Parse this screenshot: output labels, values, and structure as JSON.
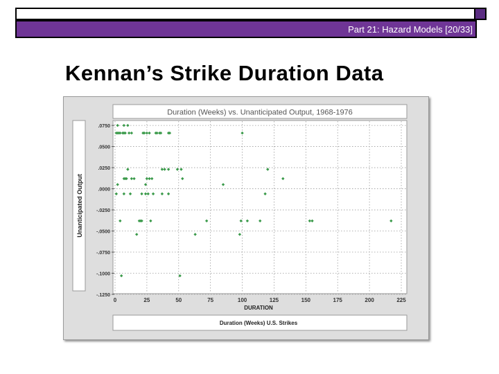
{
  "header": {
    "slide_number_label": "Part 21: Hazard Models [20/33]"
  },
  "slide": {
    "title": "Kennan’s Strike Duration Data"
  },
  "chart_data": {
    "type": "scatter",
    "title": "Duration (Weeks) vs. Unanticipated Output, 1968-1976",
    "xlabel": "DURATION",
    "ylabel": "Unanticipated Output",
    "legend_label": "Duration (Weeks) U.S. Strikes",
    "xlim": [
      0,
      225
    ],
    "ylim": [
      -0.125,
      0.08
    ],
    "x_ticks": [
      0,
      25,
      50,
      75,
      100,
      125,
      150,
      175,
      200,
      225
    ],
    "x_tick_labels": [
      "0",
      "25",
      "50",
      "75",
      "100",
      "125",
      "150",
      "175",
      "200",
      "225"
    ],
    "y_ticks": [
      0.075,
      0.05,
      0.025,
      0,
      -0.025,
      -0.05,
      -0.075,
      -0.1,
      -0.125
    ],
    "y_tick_labels": [
      ".0750",
      ".0500",
      ".0250",
      ".0000",
      "-.0250",
      "-.0500",
      "-.0750",
      "-.1000",
      "-.1250"
    ],
    "grid": true,
    "marker_color": "#3a9a4a",
    "points": [
      [
        2,
        0.075
      ],
      [
        7,
        0.075
      ],
      [
        10,
        0.075
      ],
      [
        1,
        0.066
      ],
      [
        2,
        0.066
      ],
      [
        3,
        0.066
      ],
      [
        4,
        0.066
      ],
      [
        6,
        0.066
      ],
      [
        7,
        0.066
      ],
      [
        8,
        0.066
      ],
      [
        11,
        0.066
      ],
      [
        13,
        0.066
      ],
      [
        22,
        0.066
      ],
      [
        23,
        0.066
      ],
      [
        25,
        0.066
      ],
      [
        27,
        0.066
      ],
      [
        32,
        0.066
      ],
      [
        33,
        0.066
      ],
      [
        35,
        0.066
      ],
      [
        36,
        0.066
      ],
      [
        42,
        0.066
      ],
      [
        43,
        0.066
      ],
      [
        100,
        0.066
      ],
      [
        10,
        0.023
      ],
      [
        37,
        0.023
      ],
      [
        39,
        0.023
      ],
      [
        42,
        0.023
      ],
      [
        49,
        0.023
      ],
      [
        52,
        0.023
      ],
      [
        120,
        0.023
      ],
      [
        7,
        0.012
      ],
      [
        8,
        0.012
      ],
      [
        9,
        0.012
      ],
      [
        13,
        0.012
      ],
      [
        15,
        0.012
      ],
      [
        25,
        0.012
      ],
      [
        27,
        0.012
      ],
      [
        29,
        0.012
      ],
      [
        53,
        0.012
      ],
      [
        132,
        0.012
      ],
      [
        2,
        0.005
      ],
      [
        24,
        0.005
      ],
      [
        85,
        0.005
      ],
      [
        1,
        -0.006
      ],
      [
        7,
        -0.006
      ],
      [
        12,
        -0.006
      ],
      [
        21,
        -0.006
      ],
      [
        24,
        -0.006
      ],
      [
        26,
        -0.006
      ],
      [
        30,
        -0.006
      ],
      [
        37,
        -0.006
      ],
      [
        42,
        -0.006
      ],
      [
        118,
        -0.006
      ],
      [
        4,
        -0.038
      ],
      [
        19,
        -0.038
      ],
      [
        20,
        -0.038
      ],
      [
        21,
        -0.038
      ],
      [
        28,
        -0.038
      ],
      [
        72,
        -0.038
      ],
      [
        99,
        -0.038
      ],
      [
        104,
        -0.038
      ],
      [
        114,
        -0.038
      ],
      [
        153,
        -0.038
      ],
      [
        155,
        -0.038
      ],
      [
        217,
        -0.038
      ],
      [
        17,
        -0.054
      ],
      [
        63,
        -0.054
      ],
      [
        98,
        -0.054
      ],
      [
        5,
        -0.103
      ],
      [
        51,
        -0.103
      ]
    ]
  }
}
